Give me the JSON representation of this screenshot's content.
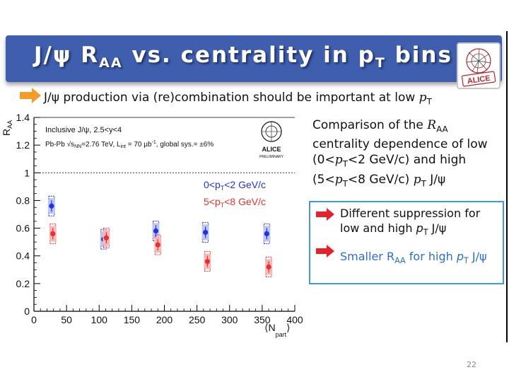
{
  "slide": {
    "title": {
      "main": "J/ψ R",
      "sub": "AA",
      "mid": " vs. centrality in p",
      "sub2": "T",
      "end": " bins"
    },
    "logo_text": "ALICE",
    "top_line": {
      "text": "J/ψ production via (re)combination should be important at low ",
      "var": "p",
      "sub": "T"
    },
    "comparison": {
      "p1": "Comparison of the ",
      "r": "R",
      "rsub": "AA",
      "p2": " centrality dependence of low (0<",
      "pt1": "p",
      "pt1sub": "T",
      "p3": "<2 GeV/c) and high (5<",
      "pt2": "p",
      "pt2sub": "T",
      "p4": "<8 GeV/c) ",
      "pt3": "p",
      "pt3sub": "T",
      "p5": " J/ψ"
    },
    "box": {
      "item1": {
        "text": "Different suppression for low and high ",
        "var": "p",
        "sub": "T",
        "tail": " J/ψ"
      },
      "item2": {
        "text": "Smaller R",
        "sub": "AA",
        "mid": " for high ",
        "var": "p",
        "sub2": "T",
        "tail": " J/ψ"
      }
    },
    "page_number": "22",
    "colors": {
      "title_bg": "#3f5fae",
      "box_border": "#3d9bd6",
      "arrow": "#f39c2a",
      "red_arrow": "#e8202a",
      "low_series": "#2233dd",
      "high_series": "#e83030"
    }
  },
  "chart_data": {
    "type": "scatter",
    "xlabel": "⟨N",
    "xlabel_sub": "part",
    "xlabel_end": "⟩",
    "ylabel": "R",
    "ylabel_sub": "AA",
    "xlim": [
      0,
      400
    ],
    "ylim": [
      0,
      1.4
    ],
    "x_ticks": [
      "0",
      "50",
      "100",
      "150",
      "200",
      "250",
      "300",
      "350",
      "400"
    ],
    "y_ticks": [
      "0",
      "0.2",
      "0.4",
      "0.6",
      "0.8",
      "1",
      "1.2",
      "1.4"
    ],
    "reference_line": 1,
    "annotations": {
      "line1": "Inclusive J/ψ, 2.5<y<4",
      "line2a": "Pb-Pb √s",
      "line2sub": "NN",
      "line2b": "=2.76 TeV, L",
      "line2sub2": "int",
      "line2c": " = 70 μb",
      "line2sup": "-1",
      "line2d": ", global sys.= ±6%",
      "logo": "ALICE",
      "logo_sub": "PRELIMINARY"
    },
    "series": [
      {
        "name": "0<pT<2 GeV/c",
        "legend": "0<p",
        "legend_sub": "T",
        "legend_end": "<2 GeV/c",
        "x": [
          27,
          107,
          187,
          263,
          357
        ],
        "y": [
          0.76,
          0.52,
          0.58,
          0.57,
          0.56
        ]
      },
      {
        "name": "5<pT<8 GeV/c",
        "legend": "5<p",
        "legend_sub": "T",
        "legend_end": "<8 GeV/c",
        "x": [
          29,
          111,
          190,
          266,
          360
        ],
        "y": [
          0.56,
          0.53,
          0.48,
          0.36,
          0.32
        ]
      }
    ]
  }
}
